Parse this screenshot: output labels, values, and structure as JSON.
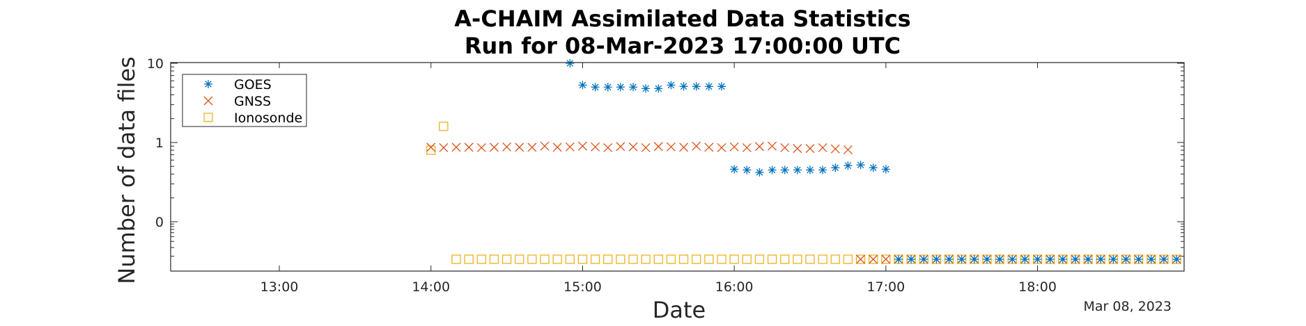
{
  "chart_data": {
    "type": "scatter",
    "title": "A-CHAIM Assimilated Data Statistics",
    "subtitle": "Run for 08-Mar-2023 17:00:00 UTC",
    "xlabel": "Date",
    "ylabel": "Number of data files",
    "date_label": "Mar 08, 2023",
    "x_ticks": [
      "13:00",
      "14:00",
      "15:00",
      "16:00",
      "17:00",
      "18:00"
    ],
    "y_ticks": [
      "0",
      "1",
      "10"
    ],
    "xlim": [
      "12:17",
      "18:58"
    ],
    "legend_position": "top-left",
    "series": [
      {
        "name": "GOES",
        "marker": "asterisk",
        "color": "#0072BD",
        "points": [
          [
            "14:55",
            10
          ],
          [
            "15:00",
            5.3
          ],
          [
            "15:05",
            5
          ],
          [
            "15:10",
            5
          ],
          [
            "15:15",
            5
          ],
          [
            "15:20",
            5
          ],
          [
            "15:25",
            4.8
          ],
          [
            "15:30",
            4.8
          ],
          [
            "15:35",
            5.3
          ],
          [
            "15:40",
            5.1
          ],
          [
            "15:45",
            5.1
          ],
          [
            "15:50",
            5.1
          ],
          [
            "15:55",
            5.1
          ],
          [
            "16:00",
            0.46
          ],
          [
            "16:05",
            0.45
          ],
          [
            "16:10",
            0.42
          ],
          [
            "16:15",
            0.45
          ],
          [
            "16:20",
            0.45
          ],
          [
            "16:25",
            0.45
          ],
          [
            "16:30",
            0.45
          ],
          [
            "16:35",
            0.45
          ],
          [
            "16:40",
            0.48
          ],
          [
            "16:45",
            0.51
          ],
          [
            "16:50",
            0.52
          ],
          [
            "16:55",
            0.48
          ],
          [
            "17:00",
            0.46
          ],
          [
            "17:05",
            0
          ],
          [
            "17:10",
            0
          ],
          [
            "17:15",
            0
          ],
          [
            "17:20",
            0
          ],
          [
            "17:25",
            0
          ],
          [
            "17:30",
            0
          ],
          [
            "17:35",
            0
          ],
          [
            "17:40",
            0
          ],
          [
            "17:45",
            0
          ],
          [
            "17:50",
            0
          ],
          [
            "17:55",
            0
          ],
          [
            "18:00",
            0
          ],
          [
            "18:05",
            0
          ],
          [
            "18:10",
            0
          ],
          [
            "18:15",
            0
          ],
          [
            "18:20",
            0
          ],
          [
            "18:25",
            0
          ],
          [
            "18:30",
            0
          ],
          [
            "18:35",
            0
          ],
          [
            "18:40",
            0
          ],
          [
            "18:45",
            0
          ],
          [
            "18:50",
            0
          ],
          [
            "18:55",
            0
          ]
        ]
      },
      {
        "name": "GNSS",
        "marker": "x",
        "color": "#D95319",
        "points": [
          [
            "14:00",
            0.87
          ],
          [
            "14:05",
            0.86
          ],
          [
            "14:10",
            0.87
          ],
          [
            "14:15",
            0.87
          ],
          [
            "14:20",
            0.86
          ],
          [
            "14:25",
            0.87
          ],
          [
            "14:30",
            0.88
          ],
          [
            "14:35",
            0.87
          ],
          [
            "14:40",
            0.87
          ],
          [
            "14:45",
            0.9
          ],
          [
            "14:50",
            0.87
          ],
          [
            "14:55",
            0.88
          ],
          [
            "15:00",
            0.9
          ],
          [
            "15:05",
            0.88
          ],
          [
            "15:10",
            0.86
          ],
          [
            "15:15",
            0.89
          ],
          [
            "15:20",
            0.88
          ],
          [
            "15:25",
            0.86
          ],
          [
            "15:30",
            0.89
          ],
          [
            "15:35",
            0.88
          ],
          [
            "15:40",
            0.87
          ],
          [
            "15:45",
            0.9
          ],
          [
            "15:50",
            0.87
          ],
          [
            "15:55",
            0.86
          ],
          [
            "16:00",
            0.88
          ],
          [
            "16:05",
            0.86
          ],
          [
            "16:10",
            0.89
          ],
          [
            "16:15",
            0.9
          ],
          [
            "16:20",
            0.86
          ],
          [
            "16:25",
            0.84
          ],
          [
            "16:30",
            0.84
          ],
          [
            "16:35",
            0.86
          ],
          [
            "16:40",
            0.83
          ],
          [
            "16:45",
            0.81
          ],
          [
            "16:50",
            0
          ],
          [
            "16:55",
            0
          ],
          [
            "17:00",
            0
          ],
          [
            "17:05",
            0
          ],
          [
            "17:10",
            0
          ],
          [
            "17:15",
            0
          ],
          [
            "17:20",
            0
          ],
          [
            "17:25",
            0
          ],
          [
            "17:30",
            0
          ],
          [
            "17:35",
            0
          ],
          [
            "17:40",
            0
          ],
          [
            "17:45",
            0
          ],
          [
            "17:50",
            0
          ],
          [
            "17:55",
            0
          ],
          [
            "18:00",
            0
          ],
          [
            "18:05",
            0
          ],
          [
            "18:10",
            0
          ],
          [
            "18:15",
            0
          ],
          [
            "18:20",
            0
          ],
          [
            "18:25",
            0
          ],
          [
            "18:30",
            0
          ],
          [
            "18:35",
            0
          ],
          [
            "18:40",
            0
          ],
          [
            "18:45",
            0
          ],
          [
            "18:50",
            0
          ],
          [
            "18:55",
            0
          ]
        ]
      },
      {
        "name": "Ionosonde",
        "marker": "square",
        "color": "#EDB120",
        "points": [
          [
            "14:00",
            0.8
          ],
          [
            "14:05",
            1.6
          ],
          [
            "14:10",
            0
          ],
          [
            "14:15",
            0
          ],
          [
            "14:20",
            0
          ],
          [
            "14:25",
            0
          ],
          [
            "14:30",
            0
          ],
          [
            "14:35",
            0
          ],
          [
            "14:40",
            0
          ],
          [
            "14:45",
            0
          ],
          [
            "14:50",
            0
          ],
          [
            "14:55",
            0
          ],
          [
            "15:00",
            0
          ],
          [
            "15:05",
            0
          ],
          [
            "15:10",
            0
          ],
          [
            "15:15",
            0
          ],
          [
            "15:20",
            0
          ],
          [
            "15:25",
            0
          ],
          [
            "15:30",
            0
          ],
          [
            "15:35",
            0
          ],
          [
            "15:40",
            0
          ],
          [
            "15:45",
            0
          ],
          [
            "15:50",
            0
          ],
          [
            "15:55",
            0
          ],
          [
            "16:00",
            0
          ],
          [
            "16:05",
            0
          ],
          [
            "16:10",
            0
          ],
          [
            "16:15",
            0
          ],
          [
            "16:20",
            0
          ],
          [
            "16:25",
            0
          ],
          [
            "16:30",
            0
          ],
          [
            "16:35",
            0
          ],
          [
            "16:40",
            0
          ],
          [
            "16:45",
            0
          ],
          [
            "16:50",
            0
          ],
          [
            "16:55",
            0
          ],
          [
            "17:00",
            0
          ],
          [
            "17:05",
            0
          ],
          [
            "17:10",
            0
          ],
          [
            "17:15",
            0
          ],
          [
            "17:20",
            0
          ],
          [
            "17:25",
            0
          ],
          [
            "17:30",
            0
          ],
          [
            "17:35",
            0
          ],
          [
            "17:40",
            0
          ],
          [
            "17:45",
            0
          ],
          [
            "17:50",
            0
          ],
          [
            "17:55",
            0
          ],
          [
            "18:00",
            0
          ],
          [
            "18:05",
            0
          ],
          [
            "18:10",
            0
          ],
          [
            "18:15",
            0
          ],
          [
            "18:20",
            0
          ],
          [
            "18:25",
            0
          ],
          [
            "18:30",
            0
          ],
          [
            "18:35",
            0
          ],
          [
            "18:40",
            0
          ],
          [
            "18:45",
            0
          ],
          [
            "18:50",
            0
          ],
          [
            "18:55",
            0
          ]
        ]
      }
    ]
  }
}
